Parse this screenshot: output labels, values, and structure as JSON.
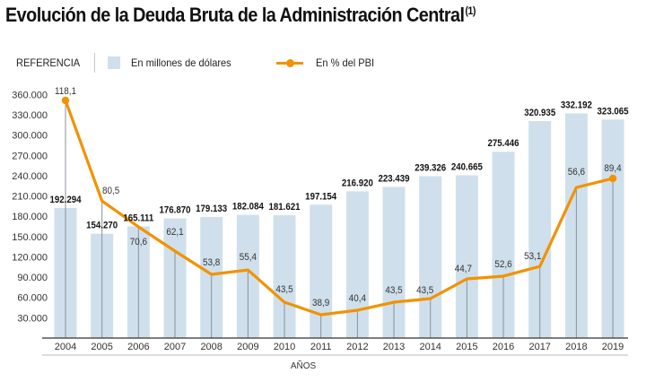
{
  "chart_data": {
    "type": "bar",
    "title": "Evolución de la Deuda Bruta de la Administración Central",
    "title_note": "(1)",
    "legend": {
      "heading": "REFERENCIA",
      "items": [
        {
          "label": "En millones de dólares",
          "kind": "bar",
          "color": "#cfe0ec"
        },
        {
          "label": "En % del PBI",
          "kind": "line",
          "color": "#f29200"
        }
      ],
      "placement": "top-left"
    },
    "xlabel": "AÑOS",
    "ylabel": "",
    "ylim": [
      0,
      360000
    ],
    "yticks": [
      30000,
      60000,
      90000,
      120000,
      150000,
      180000,
      210000,
      240000,
      270000,
      300000,
      330000,
      360000
    ],
    "ytick_labels": [
      "30.000",
      "60.000",
      "90.000",
      "120.000",
      "150.000",
      "180.000",
      "210.000",
      "240.000",
      "270.000",
      "300.000",
      "330.000",
      "360.000"
    ],
    "grid": false,
    "categories": [
      "2004",
      "2005",
      "2006",
      "2007",
      "2008",
      "2009",
      "2010",
      "2011",
      "2012",
      "2013",
      "2014",
      "2015",
      "2016",
      "2017",
      "2018",
      "2019"
    ],
    "series": [
      {
        "name": "En millones de dólares",
        "type": "bar",
        "color": "#cfe0ec",
        "values": [
          192294,
          154270,
          165111,
          176870,
          179133,
          182084,
          181621,
          197154,
          216920,
          223439,
          239326,
          240665,
          275446,
          320935,
          332192,
          323065
        ],
        "labels": [
          "192.294",
          "154.270",
          "165.111",
          "176.870",
          "179.133",
          "182.084",
          "181.621",
          "197.154",
          "216.920",
          "223.439",
          "239.326",
          "240.665",
          "275.446",
          "320.935",
          "332.192",
          "323.065"
        ]
      },
      {
        "name": "En % del PBI",
        "type": "line",
        "color": "#f29200",
        "values": [
          118.1,
          80.5,
          70.6,
          62.1,
          53.8,
          55.4,
          43.5,
          38.9,
          40.4,
          43.5,
          43.5,
          44.7,
          52.6,
          53.1,
          56.6,
          89.4
        ],
        "labels": [
          "118,1",
          "80,5",
          "70,6",
          "62,1",
          "53,8",
          "55,4",
          "43,5",
          "38,9",
          "40,4",
          "43,5",
          "43,5",
          "44,7",
          "52,6",
          "53,1",
          "56,6",
          "89,4"
        ],
        "plotted_on_left_axis": [
          351300,
          202800,
          164400,
          128600,
          94100,
          100700,
          53000,
          34500,
          41100,
          53000,
          58300,
          87500,
          91500,
          106000,
          222700,
          236000
        ],
        "markers_on": [
          "2004",
          "2019"
        ]
      }
    ]
  }
}
